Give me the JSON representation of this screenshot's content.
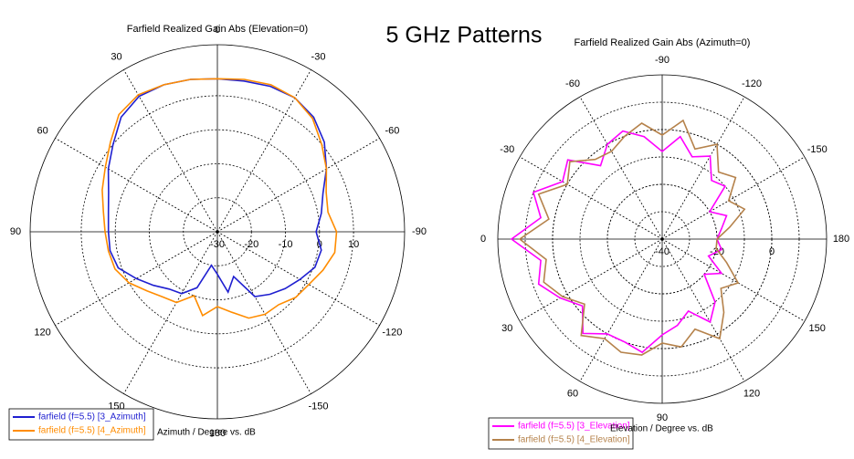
{
  "title": "5 GHz Patterns",
  "chart_data": [
    {
      "type": "polar",
      "title": "Farfield Realized Gain Abs (Elevation=0)",
      "xlabel": "Azimuth / Degree vs. dB",
      "zero_location": "top",
      "direction": "counterclockwise",
      "angle_ticks": [
        0,
        30,
        60,
        90,
        120,
        150,
        180,
        -150,
        -120,
        -90,
        -60,
        -30
      ],
      "rlim": [
        -30,
        25
      ],
      "rticks": [
        -30,
        -20,
        -10,
        0,
        10
      ],
      "radial_label_angle": -90,
      "angles": [
        0,
        10,
        20,
        30,
        40,
        50,
        60,
        70,
        80,
        90,
        100,
        110,
        120,
        130,
        140,
        150,
        160,
        170,
        180,
        -170,
        -160,
        -150,
        -140,
        -130,
        -120,
        -110,
        -100,
        -90,
        -80,
        -70,
        -60,
        -50,
        -40,
        -30,
        -20,
        -10
      ],
      "series": [
        {
          "name": "farfield (f=5.5) [3_Azimuth]",
          "color": "#1f1fd0",
          "values": [
            15,
            15.5,
            16,
            16,
            14,
            10,
            7,
            4,
            2.5,
            2,
            2,
            1,
            -2.5,
            -5.5,
            -8,
            -9,
            -12.5,
            -20,
            -17.5,
            -12,
            -16,
            -8,
            -6,
            -4,
            -2,
            0.5,
            1,
            -1,
            1,
            3,
            7,
            11,
            14,
            15.5,
            15.5,
            15
          ]
        },
        {
          "name": "farfield (f=5.5) [4_Azimuth]",
          "color": "#ff8c00",
          "values": [
            15,
            15.5,
            16,
            16.5,
            15,
            11,
            8,
            6,
            4,
            3,
            2.5,
            2,
            0,
            -3,
            -5,
            -6,
            -10,
            -5,
            -8,
            -6,
            -3,
            -2,
            -2,
            0,
            1,
            3,
            5,
            5,
            3,
            4,
            7,
            10,
            13.5,
            15.5,
            16,
            15.5
          ]
        }
      ]
    },
    {
      "type": "polar",
      "title": "Farfield Realized Gain Abs (Azimuth=0)",
      "xlabel": "Elevation / Degree vs. dB",
      "zero_location": "left",
      "direction": "counterclockwise",
      "angle_ticks": [
        0,
        30,
        60,
        90,
        120,
        150,
        180,
        -150,
        -120,
        -90,
        -60,
        -30
      ],
      "rlim": [
        -40,
        20
      ],
      "rticks": [
        -40,
        -20,
        0
      ],
      "rminor_step": 10,
      "radial_label_angle": 180,
      "angles": [
        0,
        10,
        20,
        30,
        40,
        50,
        60,
        70,
        80,
        90,
        100,
        110,
        120,
        130,
        140,
        150,
        160,
        170,
        180,
        -170,
        -160,
        -150,
        -140,
        -130,
        -120,
        -110,
        -100,
        -90,
        -80,
        -70,
        -60,
        -50,
        -40,
        -30,
        -20,
        -10
      ],
      "series": [
        {
          "name": "farfield (f=5.5) [3_Elevation]",
          "color": "#ff00ff",
          "values": [
            15,
            5,
            8,
            3,
            -2,
            5,
            0,
            0,
            2,
            -5,
            -8,
            -12,
            -5,
            -10,
            -20,
            -15,
            -22,
            -18,
            -20,
            -18,
            -15,
            -20,
            -10,
            -12,
            -5,
            -8,
            -2,
            -8,
            -2,
            2,
            0,
            -5,
            5,
            2,
            10,
            5
          ]
        },
        {
          "name": "farfield (f=5.5) [4_Elevation]",
          "color": "#b5824b",
          "values": [
            12,
            3,
            6,
            2,
            -3,
            6,
            2,
            4,
            3,
            -2,
            0,
            -5,
            2,
            -5,
            -12,
            -8,
            -15,
            -20,
            -20,
            -15,
            -8,
            -12,
            -5,
            -8,
            0,
            -5,
            4,
            -2,
            3,
            0,
            -3,
            -2,
            4,
            0,
            8,
            2
          ]
        }
      ]
    }
  ]
}
